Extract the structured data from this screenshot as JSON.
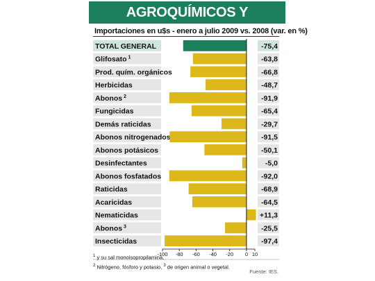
{
  "header": {
    "title": "AGROQUÍMICOS Y FERTILIZANTES"
  },
  "chart_data": {
    "type": "bar",
    "orientation": "horizontal",
    "title": "",
    "subtitle": "Importaciones en u$s - enero a julio 2009 vs. 2008 (var. en %)",
    "categories": [
      {
        "label": "TOTAL GENERAL",
        "sup": ""
      },
      {
        "label": "Glifosato",
        "sup": "1"
      },
      {
        "label": "Prod. quím. orgánicos",
        "sup": ""
      },
      {
        "label": "Herbicidas",
        "sup": ""
      },
      {
        "label": "Abonos",
        "sup": "2"
      },
      {
        "label": "Fungicidas",
        "sup": ""
      },
      {
        "label": "Demás raticidas",
        "sup": ""
      },
      {
        "label": "Abonos nitrogenados",
        "sup": ""
      },
      {
        "label": "Abonos potásicos",
        "sup": ""
      },
      {
        "label": "Desinfectantes",
        "sup": ""
      },
      {
        "label": "Abonos fosfatados",
        "sup": ""
      },
      {
        "label": "Raticidas",
        "sup": ""
      },
      {
        "label": "Acaricidas",
        "sup": ""
      },
      {
        "label": "Nematicidas",
        "sup": ""
      },
      {
        "label": "Abonos",
        "sup": "3"
      },
      {
        "label": "Insecticidas",
        "sup": ""
      }
    ],
    "values": [
      -75.4,
      -63.8,
      -66.8,
      -48.7,
      -91.9,
      -65.4,
      -29.7,
      -91.5,
      -50.1,
      -5.0,
      -92.0,
      -68.9,
      -64.5,
      11.3,
      -25.5,
      -97.4
    ],
    "value_labels": [
      "-75,4",
      "-63,8",
      "-66,8",
      "-48,7",
      "-91,9",
      "-65,4",
      "-29,7",
      "-91,5",
      "-50,1",
      "-5,0",
      "-92,0",
      "-68,9",
      "-64,5",
      "+11,3",
      "-25,5",
      "-97,4"
    ],
    "xlim": [
      -100,
      10
    ],
    "xticks": [
      "-100",
      "-80",
      "-60",
      "-40",
      "-20",
      "0",
      "10"
    ],
    "colors": {
      "total": "#1a7f5a",
      "bars": "#dcb81b",
      "label_band": "#e6e6e6",
      "total_band": "#cfe5dc",
      "header": "#1a7f5a"
    }
  },
  "footnotes": {
    "line1_num": "1",
    "line1_text": "y su sal monoisopropilamina,",
    "line2_num2": "2",
    "line2_text2": "Nitrógeno, fósforo y potasio,",
    "line2_num3": "3",
    "line2_text3": "de origen animal o vegetal."
  },
  "source": "Fuente: IES."
}
